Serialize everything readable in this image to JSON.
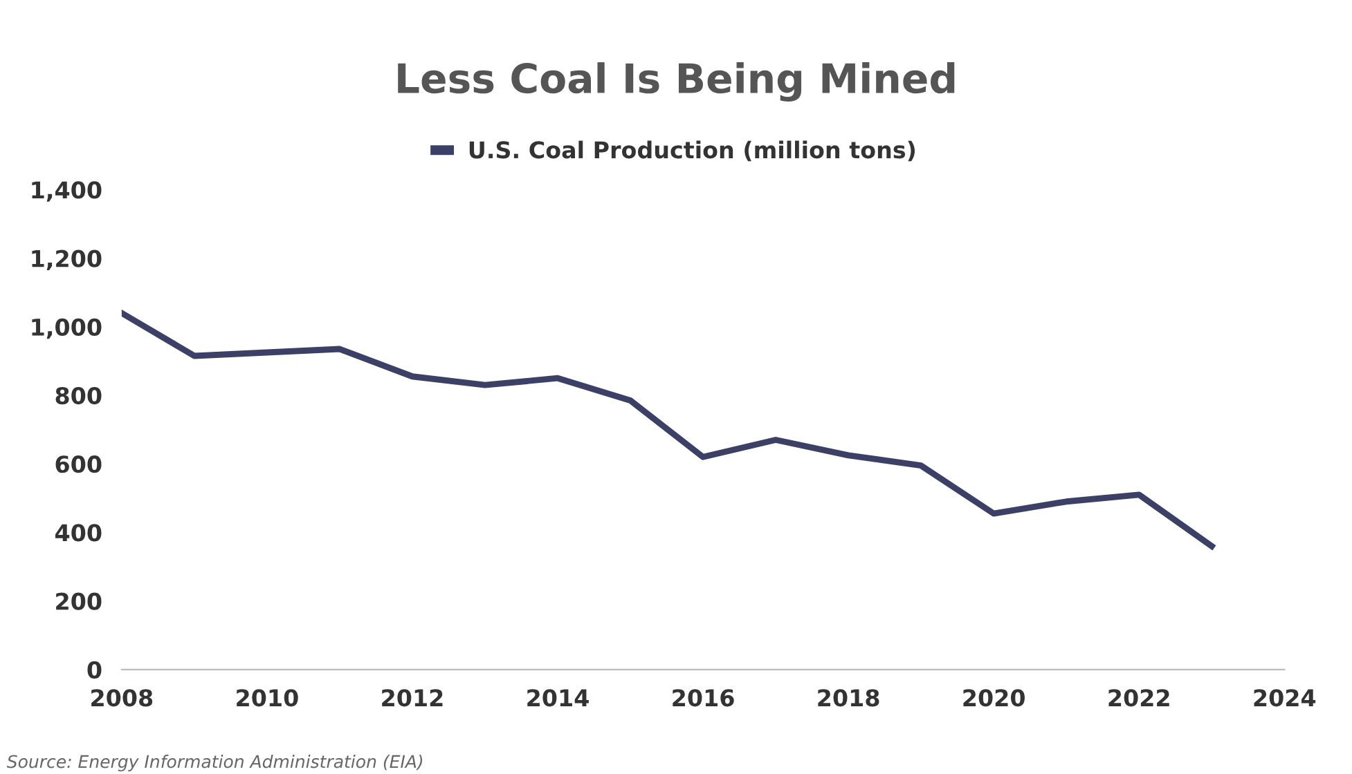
{
  "chart_data": {
    "type": "line",
    "title": "Less Coal Is Being Mined",
    "x": [
      2008,
      2009,
      2010,
      2011,
      2012,
      2013,
      2014,
      2015,
      2016,
      2017,
      2018,
      2019,
      2020,
      2021,
      2022,
      2023
    ],
    "series": [
      {
        "name": "U.S. Coal Production (million tons)",
        "color": "#3d4066",
        "values": [
          1040,
          915,
          925,
          935,
          855,
          830,
          850,
          785,
          620,
          670,
          625,
          595,
          455,
          490,
          510,
          360
        ]
      }
    ],
    "xlim": [
      2008,
      2024
    ],
    "xticks": [
      2008,
      2010,
      2012,
      2014,
      2016,
      2018,
      2020,
      2022,
      2024
    ],
    "ylim": [
      0,
      1400
    ],
    "yticks": [
      0,
      {
        "value": 200,
        "label": "200"
      },
      {
        "value": 400,
        "label": "400"
      },
      {
        "value": 600,
        "label": "600"
      },
      {
        "value": 800,
        "label": "800"
      },
      {
        "value": 1000,
        "label": "1,000"
      },
      {
        "value": 1200,
        "label": "1,200"
      },
      {
        "value": 1400,
        "label": "1,400"
      }
    ],
    "grid": false,
    "legend": "top",
    "marker": "none",
    "line_style": "solid",
    "annotations": [
      "Source: Energy Information Administration (EIA)"
    ]
  }
}
